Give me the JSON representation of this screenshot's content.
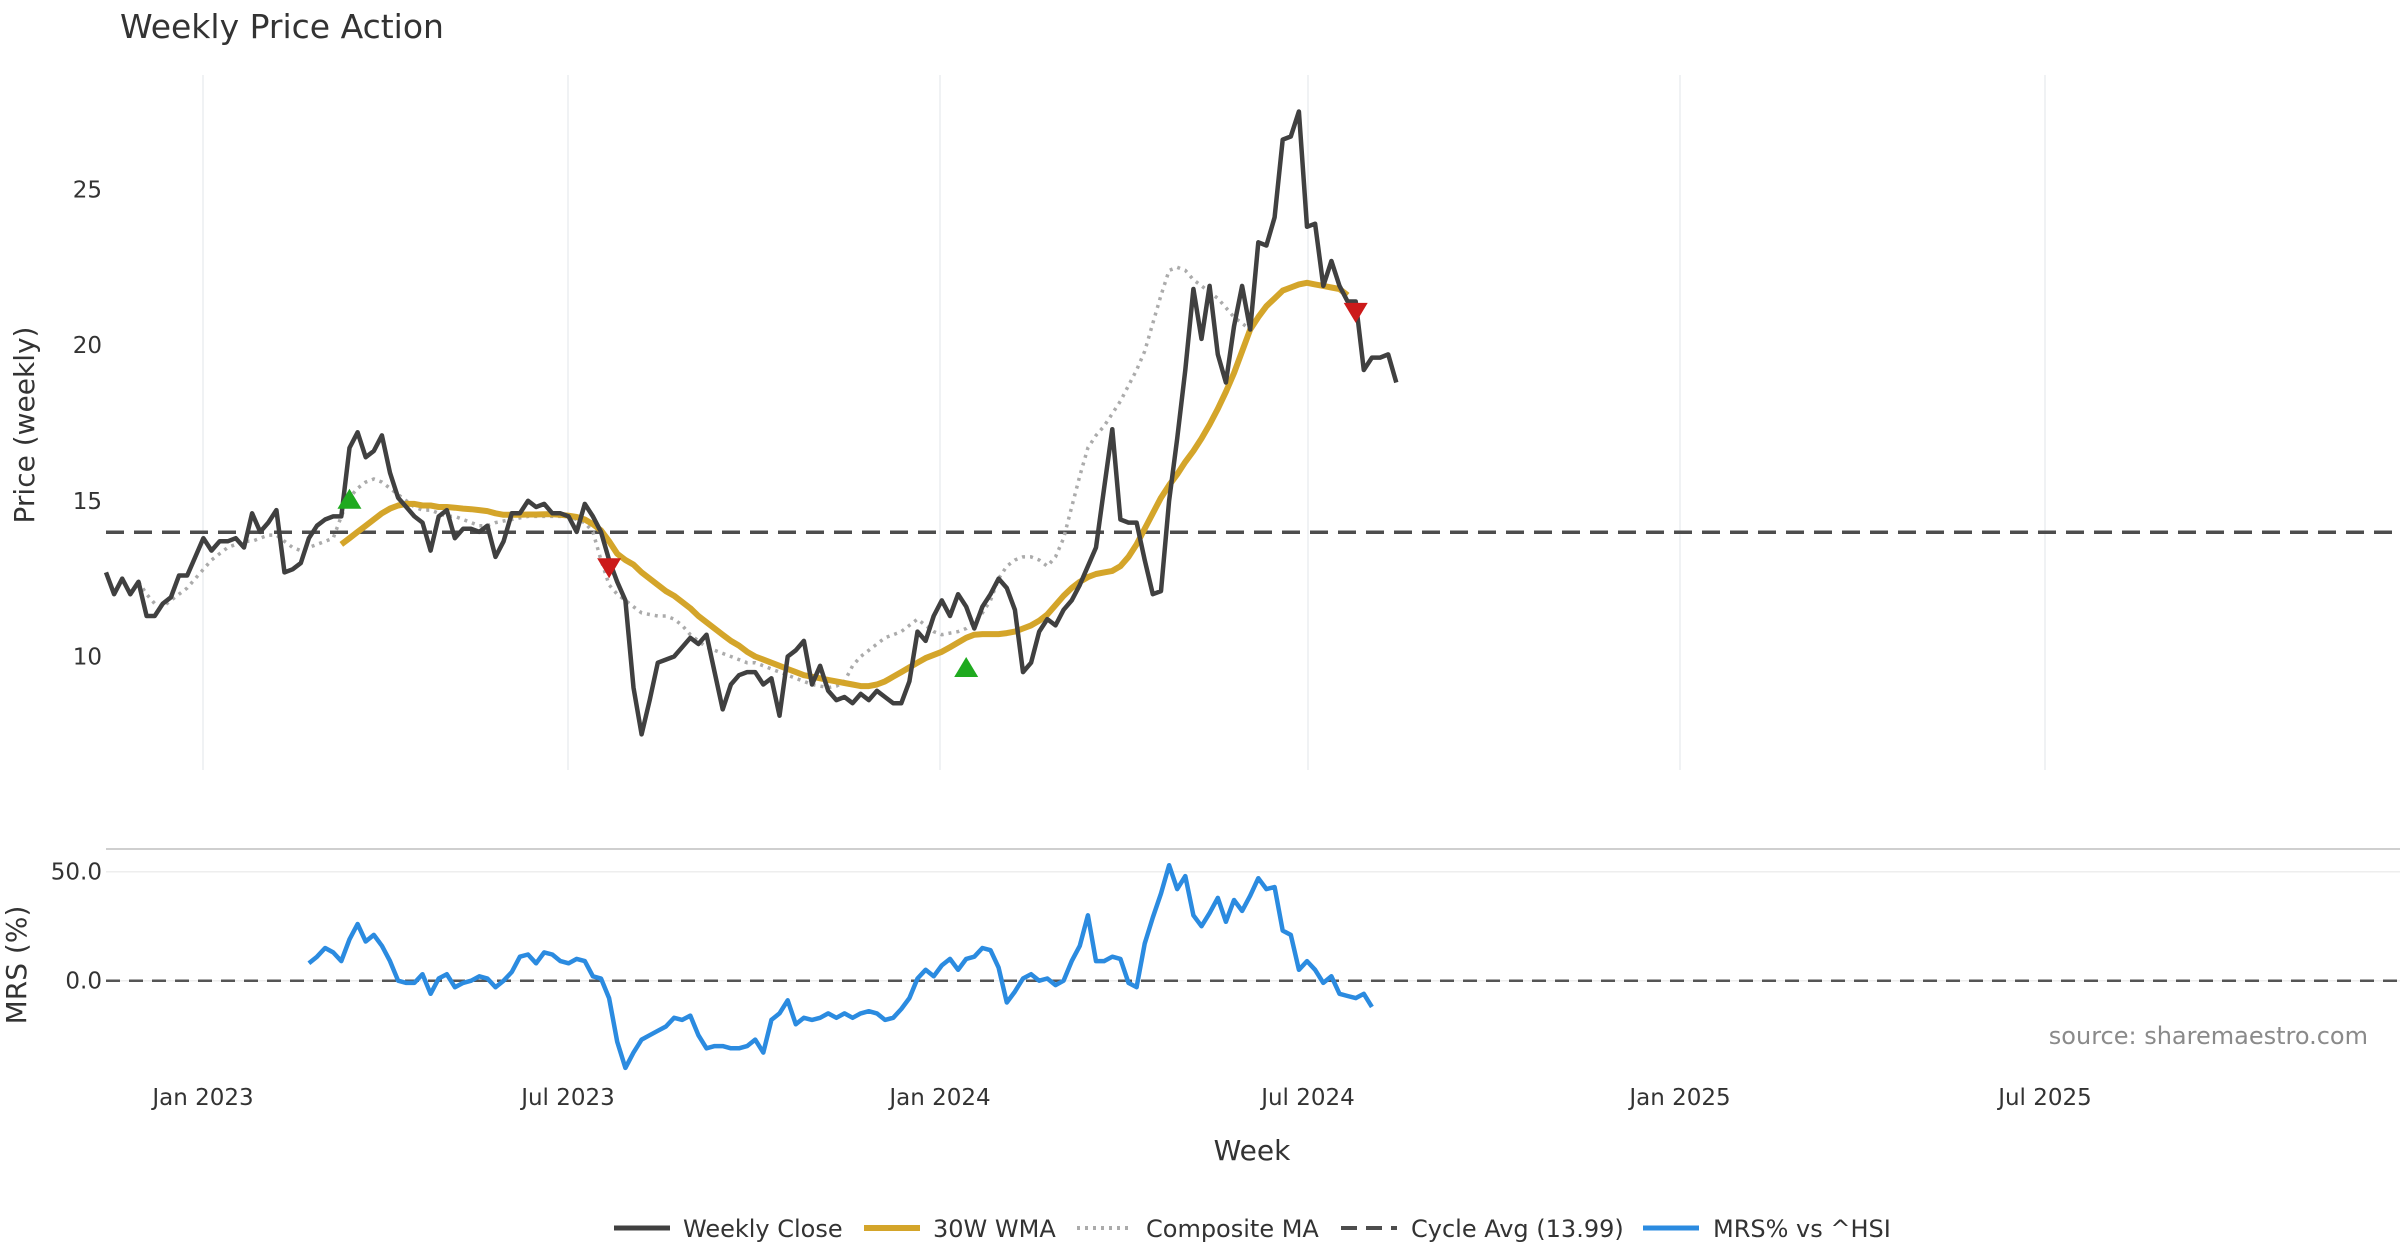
{
  "chart_data": [
    {
      "type": "line",
      "title": "Weekly Price Action",
      "xlabel": "",
      "ylabel": "Price (weekly)",
      "x_ticks": [
        "Jan 2023",
        "Jul 2023",
        "Jan 2024",
        "Jul 2024",
        "Jan 2025",
        "Jul 2025"
      ],
      "y_ticks": [
        10,
        15,
        20,
        25
      ],
      "ylim": [
        6.5,
        28
      ],
      "grid": "vertical",
      "cycle_avg": 13.99,
      "series": [
        {
          "name": "Weekly Close",
          "color": "#404040",
          "style": "solid",
          "values": [
            12.7,
            12.0,
            12.5,
            12.0,
            12.4,
            11.3,
            11.3,
            11.7,
            11.9,
            12.6,
            12.6,
            13.2,
            13.8,
            13.4,
            13.7,
            13.7,
            13.8,
            13.5,
            14.6,
            14.0,
            14.3,
            14.7,
            12.7,
            12.8,
            13.0,
            13.8,
            14.2,
            14.4,
            14.5,
            14.5,
            16.7,
            17.2,
            16.4,
            16.6,
            17.1,
            15.9,
            15.1,
            14.8,
            14.5,
            14.3,
            13.4,
            14.5,
            14.7,
            13.8,
            14.1,
            14.1,
            14.0,
            14.2,
            13.2,
            13.7,
            14.6,
            14.6,
            15.0,
            14.8,
            14.9,
            14.6,
            14.6,
            14.5,
            14.0,
            14.9,
            14.5,
            14.0,
            13.1,
            12.4,
            11.8,
            9.0,
            7.5,
            8.6,
            9.8,
            9.9,
            10.0,
            10.3,
            10.6,
            10.4,
            10.7,
            9.5,
            8.3,
            9.1,
            9.4,
            9.5,
            9.5,
            9.1,
            9.3,
            8.1,
            10.0,
            10.2,
            10.5,
            9.1,
            9.7,
            8.9,
            8.6,
            8.7,
            8.5,
            8.8,
            8.6,
            8.9,
            8.7,
            8.5,
            8.5,
            9.2,
            10.8,
            10.5,
            11.3,
            11.8,
            11.3,
            12.0,
            11.6,
            10.9,
            11.6,
            12.0,
            12.5,
            12.2,
            11.5,
            9.5,
            9.8,
            10.8,
            11.2,
            11.0,
            11.5,
            11.8,
            12.3,
            12.9,
            13.5,
            15.4,
            17.3,
            14.4,
            14.3,
            14.3,
            13.1,
            12.0,
            12.1,
            15.0,
            17.0,
            19.2,
            21.8,
            20.2,
            21.9,
            19.7,
            18.8,
            20.6,
            21.9,
            20.5,
            23.3,
            23.2,
            24.1,
            26.6,
            26.7,
            27.5,
            23.8,
            23.9,
            21.9,
            22.7,
            21.9,
            21.4,
            21.4,
            19.2,
            19.6,
            19.6,
            19.7,
            18.8
          ]
        },
        {
          "name": "30W WMA",
          "color": "#d4a52a",
          "style": "solid",
          "start_index": 29,
          "values": [
            13.6,
            13.8,
            14.0,
            14.2,
            14.4,
            14.6,
            14.75,
            14.85,
            14.9,
            14.9,
            14.85,
            14.85,
            14.8,
            14.8,
            14.78,
            14.75,
            14.73,
            14.7,
            14.67,
            14.6,
            14.55,
            14.55,
            14.55,
            14.56,
            14.56,
            14.57,
            14.57,
            14.55,
            14.52,
            14.48,
            14.4,
            14.25,
            14.05,
            13.7,
            13.3,
            13.1,
            12.95,
            12.7,
            12.5,
            12.3,
            12.1,
            11.95,
            11.75,
            11.55,
            11.3,
            11.1,
            10.9,
            10.7,
            10.5,
            10.35,
            10.15,
            10.0,
            9.9,
            9.8,
            9.7,
            9.6,
            9.5,
            9.4,
            9.35,
            9.3,
            9.25,
            9.2,
            9.15,
            9.1,
            9.05,
            9.05,
            9.1,
            9.2,
            9.35,
            9.5,
            9.65,
            9.8,
            9.95,
            10.05,
            10.15,
            10.3,
            10.45,
            10.6,
            10.7,
            10.72,
            10.72,
            10.72,
            10.75,
            10.8,
            10.9,
            11.0,
            11.15,
            11.35,
            11.65,
            11.95,
            12.2,
            12.4,
            12.55,
            12.65,
            12.7,
            12.75,
            12.9,
            13.2,
            13.6,
            14.1,
            14.6,
            15.1,
            15.5,
            15.85,
            16.25,
            16.6,
            17.0,
            17.45,
            17.95,
            18.5,
            19.1,
            19.8,
            20.5,
            20.9,
            21.25,
            21.5,
            21.75,
            21.85,
            21.95,
            22.0,
            21.95,
            21.9,
            21.85,
            21.8,
            21.6
          ]
        },
        {
          "name": "Composite MA",
          "color": "#ababab",
          "style": "dotted",
          "start_index": 4,
          "values": [
            12.4,
            12.0,
            11.7,
            11.6,
            11.8,
            12.0,
            12.2,
            12.5,
            12.8,
            13.1,
            13.3,
            13.5,
            13.6,
            13.7,
            13.7,
            13.8,
            13.9,
            13.9,
            13.7,
            13.5,
            13.4,
            13.5,
            13.6,
            13.7,
            13.8,
            14.5,
            15.1,
            15.4,
            15.6,
            15.7,
            15.6,
            15.4,
            15.2,
            15.0,
            14.8,
            14.7,
            14.7,
            14.6,
            14.5,
            14.5,
            14.4,
            14.3,
            14.2,
            14.2,
            14.3,
            14.35,
            14.4,
            14.45,
            14.5,
            14.5,
            14.5,
            14.5,
            14.5,
            14.5,
            14.4,
            14.3,
            14.0,
            13.1,
            12.3,
            12.0,
            11.8,
            11.6,
            11.4,
            11.35,
            11.3,
            11.3,
            11.2,
            11.0,
            10.7,
            10.5,
            10.3,
            10.2,
            10.1,
            10.0,
            9.9,
            9.8,
            9.8,
            9.7,
            9.6,
            9.5,
            9.4,
            9.3,
            9.2,
            9.1,
            9.05,
            9.0,
            9.05,
            9.2,
            9.7,
            10.0,
            10.2,
            10.4,
            10.6,
            10.7,
            10.8,
            11.0,
            11.2,
            11.0,
            10.8,
            10.7,
            10.75,
            10.8,
            10.9,
            11.1,
            11.4,
            11.8,
            12.5,
            12.9,
            13.1,
            13.2,
            13.2,
            13.1,
            12.9,
            13.2,
            13.8,
            14.8,
            15.8,
            16.7,
            17.1,
            17.4,
            17.8,
            18.2,
            18.7,
            19.2,
            19.8,
            20.7,
            21.6,
            22.4,
            22.5,
            22.4,
            22.1,
            21.9,
            21.7,
            21.5,
            21.2,
            20.9,
            20.7,
            20.5
          ]
        },
        {
          "name": "Cycle Avg (13.99)",
          "color": "#4d4d4d",
          "style": "dashed",
          "values": [
            13.99
          ]
        }
      ],
      "markers": [
        {
          "type": "buy",
          "index": 30,
          "value": 15.0,
          "color": "#1faa1f"
        },
        {
          "type": "sell",
          "index": 62,
          "value": 12.9,
          "color": "#cc1a1a"
        },
        {
          "type": "buy",
          "index": 106,
          "value": 9.6,
          "color": "#1faa1f"
        },
        {
          "type": "sell",
          "index": 154,
          "value": 21.1,
          "color": "#cc1a1a"
        }
      ]
    },
    {
      "type": "line",
      "xlabel": "Week",
      "ylabel": "MRS (%)",
      "x_ticks": [
        "Jan 2023",
        "Jul 2023",
        "Jan 2024",
        "Jul 2024",
        "Jan 2025",
        "Jul 2025"
      ],
      "y_ticks": [
        "50.0",
        "0.0"
      ],
      "ylim": [
        -45,
        60
      ],
      "series": [
        {
          "name": "MRS% vs ^HSI",
          "color": "#2b8be0",
          "style": "solid",
          "start_index": 25,
          "values": [
            8,
            11,
            15,
            13,
            9,
            19,
            26,
            18,
            21,
            16,
            9,
            0,
            -1,
            -1,
            3,
            -6,
            1,
            3,
            -3,
            -1,
            0,
            2,
            1,
            -3,
            0,
            4,
            11,
            12,
            8,
            13,
            12,
            9,
            8,
            10,
            9,
            2,
            1,
            -8,
            -28,
            -40,
            -33,
            -27,
            -25,
            -23,
            -21,
            -17,
            -18,
            -16,
            -25,
            -31,
            -30,
            -30,
            -31,
            -31,
            -30,
            -27,
            -33,
            -18,
            -15,
            -9,
            -20,
            -17,
            -18,
            -17,
            -15,
            -17,
            -15,
            -17,
            -15,
            -14,
            -15,
            -18,
            -17,
            -13,
            -8,
            1,
            5,
            2,
            7,
            10,
            5,
            10,
            11,
            15,
            14,
            6,
            -10,
            -5,
            1,
            3,
            0,
            1,
            -2,
            0,
            9,
            16,
            30,
            9,
            9,
            11,
            10,
            -1,
            -3,
            17,
            29,
            40,
            53,
            42,
            48,
            30,
            25,
            31,
            38,
            27,
            37,
            32,
            39,
            47,
            42,
            43,
            23,
            21,
            5,
            9,
            5,
            -1,
            2,
            -6,
            -7,
            -8,
            -6,
            -12
          ]
        },
        {
          "name": "Zero line",
          "color": "#555555",
          "style": "dashed",
          "values": [
            0
          ]
        }
      ]
    }
  ],
  "source": "source: sharemaestro.com",
  "legend": [
    "Weekly Close",
    "30W WMA",
    "Composite MA",
    "Cycle Avg (13.99)",
    "MRS% vs ^HSI"
  ],
  "colors": {
    "close": "#404040",
    "wma": "#d4a52a",
    "composite": "#ababab",
    "cycle": "#4d4d4d",
    "mrs": "#2b8be0",
    "buy": "#1faa1f",
    "sell": "#cc1a1a"
  }
}
